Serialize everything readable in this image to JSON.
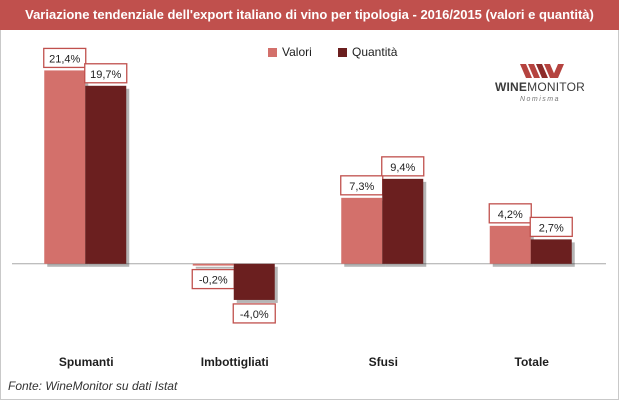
{
  "chart_data": {
    "type": "bar",
    "title": "Variazione tendenziale dell'export italiano di vino per tipologia - 2016/2015 (valori e quantità)",
    "categories": [
      "Spumanti",
      "Imbottigliati",
      "Sfusi",
      "Totale"
    ],
    "series": [
      {
        "name": "Valori",
        "values": [
          21.4,
          -0.2,
          7.3,
          4.2
        ],
        "labels": [
          "21,4%",
          "-0,2%",
          "7,3%",
          "4,2%"
        ],
        "color": "#d3706b"
      },
      {
        "name": "Quantità",
        "values": [
          19.7,
          -4.0,
          9.4,
          2.7
        ],
        "labels": [
          "19,7%",
          "-4,0%",
          "9,4%",
          "2,7%"
        ],
        "color": "#6b1f1f"
      }
    ],
    "ylim": [
      -6,
      22
    ],
    "grid": false,
    "legend": "top-center",
    "source": "Fonte: WineMonitor su dati Istat"
  },
  "logo": {
    "wine": "WINE",
    "monitor": "MONITOR",
    "sub": "Nomisma",
    "color": "#b5433f"
  }
}
